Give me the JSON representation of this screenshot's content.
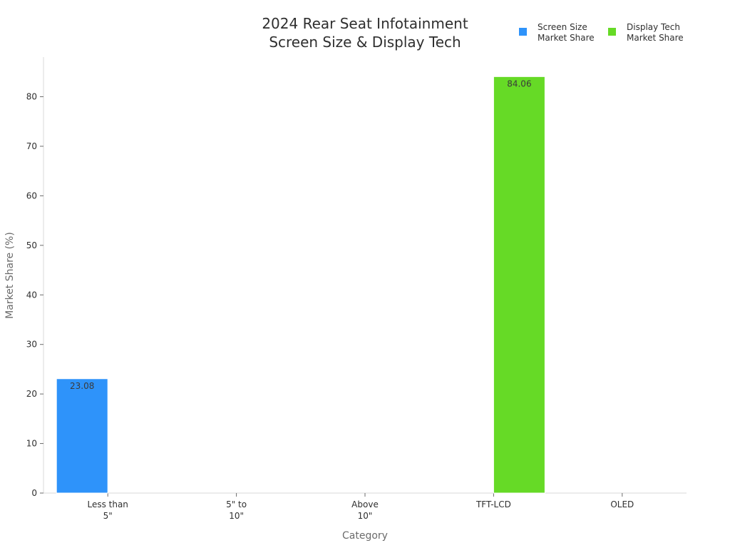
{
  "chart_data": {
    "type": "bar",
    "title": [
      "2024 Rear Seat Infotainment",
      "Screen Size & Display Tech"
    ],
    "xlabel": "Category",
    "ylabel": "Market Share (%)",
    "ylim": [
      0,
      88
    ],
    "yticks": [
      "0",
      "10",
      "20",
      "30",
      "40",
      "50",
      "60",
      "70",
      "80"
    ],
    "categories": [
      [
        "Less than",
        "5\""
      ],
      [
        "5\" to",
        "10\""
      ],
      [
        "Above",
        "10\""
      ],
      [
        "TFT-LCD"
      ],
      [
        "OLED"
      ]
    ],
    "series": [
      {
        "name": [
          "Screen Size",
          "Market Share"
        ],
        "color": "#2e93fa",
        "values": [
          23.08,
          0,
          0,
          null,
          null
        ],
        "labels": [
          "23.08",
          null,
          null,
          null,
          null
        ]
      },
      {
        "name": [
          "Display Tech",
          "Market Share"
        ],
        "color": "#66da26",
        "values": [
          null,
          null,
          null,
          84.06,
          0
        ],
        "labels": [
          null,
          null,
          null,
          "84.06",
          null
        ]
      }
    ],
    "grid": false,
    "legend_position": "top-right"
  }
}
